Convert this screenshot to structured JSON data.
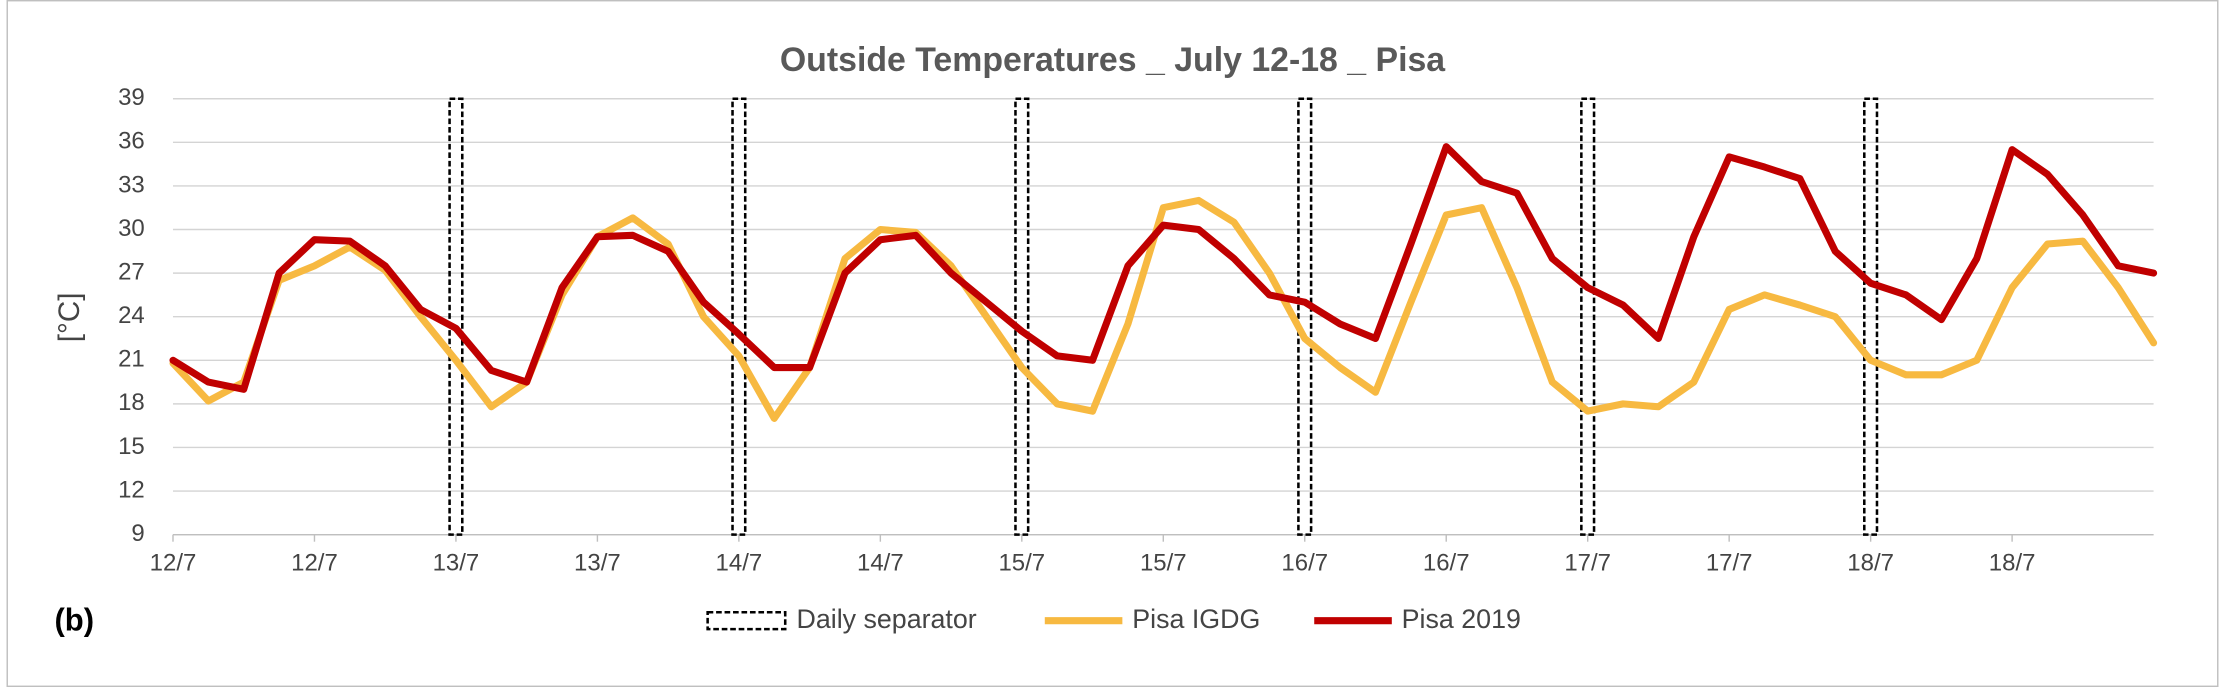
{
  "panel_label": "(b)",
  "chart_data": {
    "type": "line",
    "title": "Outside Temperatures _ July 12-18 _ Pisa",
    "y_label": "[°C]",
    "x": [
      0,
      3,
      6,
      9,
      12,
      15,
      18,
      21,
      24,
      27,
      30,
      33,
      36,
      39,
      42,
      45,
      48,
      51,
      54,
      57,
      60,
      63,
      66,
      69,
      72,
      75,
      78,
      81,
      84,
      87,
      90,
      93,
      96,
      99,
      102,
      105,
      108,
      111,
      114,
      117,
      120,
      123,
      126,
      129,
      132,
      135,
      138,
      141,
      144,
      147,
      150,
      153,
      156,
      159,
      162,
      165,
      168
    ],
    "xlim": [
      0,
      168
    ],
    "xticks": [
      {
        "value": 0,
        "label": "12/7"
      },
      {
        "value": 12,
        "label": "12/7"
      },
      {
        "value": 24,
        "label": "13/7"
      },
      {
        "value": 36,
        "label": "13/7"
      },
      {
        "value": 48,
        "label": "14/7"
      },
      {
        "value": 60,
        "label": "14/7"
      },
      {
        "value": 72,
        "label": "15/7"
      },
      {
        "value": 84,
        "label": "15/7"
      },
      {
        "value": 96,
        "label": "16/7"
      },
      {
        "value": 108,
        "label": "16/7"
      },
      {
        "value": 120,
        "label": "17/7"
      },
      {
        "value": 132,
        "label": "17/7"
      },
      {
        "value": 144,
        "label": "18/7"
      },
      {
        "value": 156,
        "label": "18/7"
      }
    ],
    "ylim": [
      9,
      39
    ],
    "yticks": [
      9,
      12,
      15,
      18,
      21,
      24,
      27,
      30,
      33,
      36,
      39
    ],
    "grid": true,
    "separator": {
      "name": "Daily separator",
      "color": "#000000",
      "x": [
        24,
        48,
        72,
        96,
        120,
        144
      ]
    },
    "series": [
      {
        "name": "Pisa IGDG",
        "color": "#f7b941",
        "values": [
          20.8,
          18.2,
          19.5,
          26.5,
          27.5,
          28.8,
          27.2,
          24,
          21,
          17.8,
          19.5,
          25.5,
          29.5,
          30.8,
          29,
          24,
          21.3,
          17,
          20.5,
          28,
          30,
          29.8,
          27.5,
          24,
          20.5,
          18,
          17.5,
          23.5,
          31.5,
          32,
          30.5,
          27,
          22.5,
          20.5,
          18.8,
          25,
          31,
          31.5,
          26,
          19.5,
          17.5,
          18,
          17.8,
          19.5,
          24.5,
          25.5,
          24.8,
          24,
          21,
          20,
          20,
          21,
          26,
          29,
          29.2,
          26,
          22.2
        ]
      },
      {
        "name": "Pisa 2019",
        "color": "#c00000",
        "values": [
          21,
          19.5,
          19,
          27,
          29.3,
          29.2,
          27.5,
          24.5,
          23.2,
          20.3,
          19.5,
          26,
          29.5,
          29.6,
          28.5,
          25,
          22.8,
          20.5,
          20.5,
          27,
          29.3,
          29.6,
          27,
          25,
          23,
          21.3,
          21,
          27.5,
          30.3,
          30,
          28,
          25.5,
          25,
          23.5,
          22.5,
          29,
          35.7,
          33.3,
          32.5,
          28,
          26,
          24.8,
          22.5,
          29.5,
          35,
          34.3,
          33.5,
          28.5,
          26.3,
          25.5,
          23.8,
          28,
          35.5,
          33.8,
          31,
          27.5,
          27
        ]
      }
    ]
  }
}
